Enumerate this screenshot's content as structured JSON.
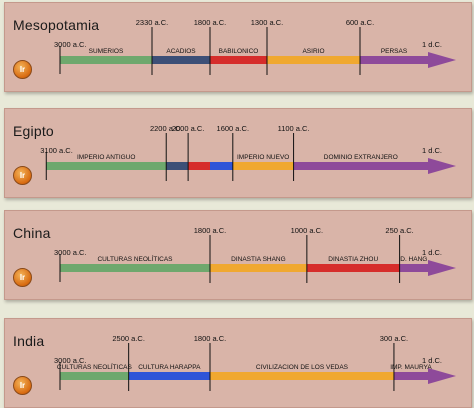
{
  "colors": {
    "green": "#6ea86d",
    "navy": "#3c4f77",
    "red": "#d62d2b",
    "orange": "#f0a830",
    "purple": "#8e4a9a",
    "blue": "#2f55d8",
    "ir_button": "#e07a1f"
  },
  "button_label": "Ir",
  "timelines": [
    {
      "name": "Mesopotamia",
      "dates": [
        {
          "label": "3000 a.C.",
          "year": -3000,
          "row": "low"
        },
        {
          "label": "2330 a.C.",
          "year": -2330,
          "row": "high"
        },
        {
          "label": "1800 a.C.",
          "year": -1800,
          "row": "high"
        },
        {
          "label": "1300 a.C.",
          "year": -1300,
          "row": "high"
        },
        {
          "label": "600 a.C.",
          "year": -600,
          "row": "high"
        },
        {
          "label": "1 d.C.",
          "year": 1,
          "row": "low"
        }
      ],
      "periods": [
        {
          "label": "SUMERIOS",
          "start": -3000,
          "end": -2330,
          "color": "green"
        },
        {
          "label": "ACADIOS",
          "start": -2330,
          "end": -1800,
          "color": "navy"
        },
        {
          "label": "BABILONICO",
          "start": -1800,
          "end": -1300,
          "color": "red"
        },
        {
          "label": "ASIRIO",
          "start": -1300,
          "end": -600,
          "color": "orange"
        },
        {
          "label": "PERSAS",
          "start": -600,
          "end": 1,
          "color": "purple"
        }
      ]
    },
    {
      "name": "Egipto",
      "dates": [
        {
          "label": "3100 a.C.",
          "year": -3100,
          "row": "low"
        },
        {
          "label": "2200 a.C.",
          "year": -2200,
          "row": "high"
        },
        {
          "label": "2000 a.C.",
          "year": -2000,
          "row": "high"
        },
        {
          "label": "1600 a.C.",
          "year": -1600,
          "row": "high"
        },
        {
          "label": "1100 a.C.",
          "year": -1100,
          "row": "high"
        },
        {
          "label": "1 d.C.",
          "year": 1,
          "row": "low"
        }
      ],
      "periods": [
        {
          "label": "IMPERIO ANTIGUO",
          "start": -3100,
          "end": -2200,
          "color": "green"
        },
        {
          "label": "",
          "start": -2200,
          "end": -2000,
          "color": "navy"
        },
        {
          "label": "",
          "start": -2000,
          "end": -1800,
          "color": "red"
        },
        {
          "label": "",
          "start": -1800,
          "end": -1600,
          "color": "blue"
        },
        {
          "label": "IMPERIO NUEVO",
          "start": -1600,
          "end": -1100,
          "color": "orange"
        },
        {
          "label": "DOMINIO EXTRANJERO",
          "start": -1100,
          "end": 1,
          "color": "purple"
        }
      ]
    },
    {
      "name": "China",
      "dates": [
        {
          "label": "3000 a.C.",
          "year": -3000,
          "row": "low"
        },
        {
          "label": "1800 a.C.",
          "year": -1800,
          "row": "high"
        },
        {
          "label": "1000 a.C.",
          "year": -1000,
          "row": "high"
        },
        {
          "label": "250 a.C.",
          "year": -250,
          "row": "high"
        },
        {
          "label": "1 d.C.",
          "year": 1,
          "row": "low"
        }
      ],
      "periods": [
        {
          "label": "CULTURAS NEOLÍTICAS",
          "start": -3000,
          "end": -1800,
          "color": "green"
        },
        {
          "label": "DINASTIA SHANG",
          "start": -1800,
          "end": -1000,
          "color": "orange"
        },
        {
          "label": "DINASTIA ZHOU",
          "start": -1000,
          "end": -250,
          "color": "red"
        },
        {
          "label": "D. HANG",
          "start": -250,
          "end": 1,
          "color": "purple"
        }
      ]
    },
    {
      "name": "India",
      "dates": [
        {
          "label": "3000 a.C.",
          "year": -3000,
          "row": "low"
        },
        {
          "label": "2500 a.C.",
          "year": -2500,
          "row": "high"
        },
        {
          "label": "1800 a.C.",
          "year": -1800,
          "row": "high"
        },
        {
          "label": "300 a.C.",
          "year": -300,
          "row": "high"
        },
        {
          "label": "1 d.C.",
          "year": 1,
          "row": "low"
        }
      ],
      "periods": [
        {
          "label": "CULTURAS NEOLÍTICAS",
          "start": -3000,
          "end": -2500,
          "color": "green"
        },
        {
          "label": "CULTURA HARAPPA",
          "start": -2500,
          "end": -1800,
          "color": "blue"
        },
        {
          "label": "CIVILIZACION DE LOS VEDAS",
          "start": -1800,
          "end": -300,
          "color": "orange"
        },
        {
          "label": "IMP. MAURYA",
          "start": -300,
          "end": 1,
          "color": "purple"
        }
      ]
    }
  ]
}
